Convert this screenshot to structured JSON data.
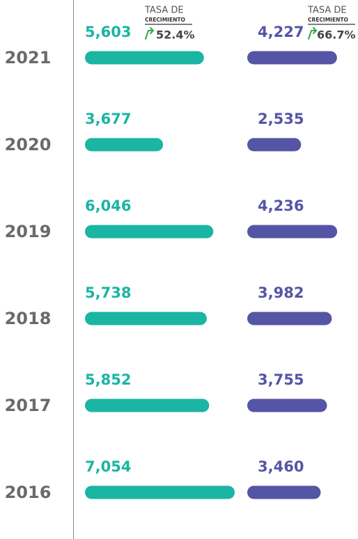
{
  "chart_data": {
    "type": "bar",
    "orientation": "horizontal",
    "categories": [
      "2021",
      "2020",
      "2019",
      "2018",
      "2017",
      "2016"
    ],
    "series": [
      {
        "color": "#1ab5a3",
        "values": [
          5603,
          3677,
          6046,
          5738,
          5852,
          7054
        ],
        "value_labels": [
          "5,603",
          "3,677",
          "6,046",
          "5,738",
          "5,852",
          "7,054"
        ]
      },
      {
        "color": "#5555a6",
        "values": [
          4227,
          2535,
          4236,
          3982,
          3755,
          3460
        ],
        "value_labels": [
          "4,227",
          "2,535",
          "4,236",
          "3,982",
          "3,755",
          "3,460"
        ]
      }
    ],
    "annotations": [
      {
        "line1": "TASA DE",
        "line2": "CRECIMIENTO",
        "text": "52.4%"
      },
      {
        "line1": "TASA DE",
        "line2": "CRECIMIENTO",
        "text": "66.7%"
      }
    ]
  }
}
